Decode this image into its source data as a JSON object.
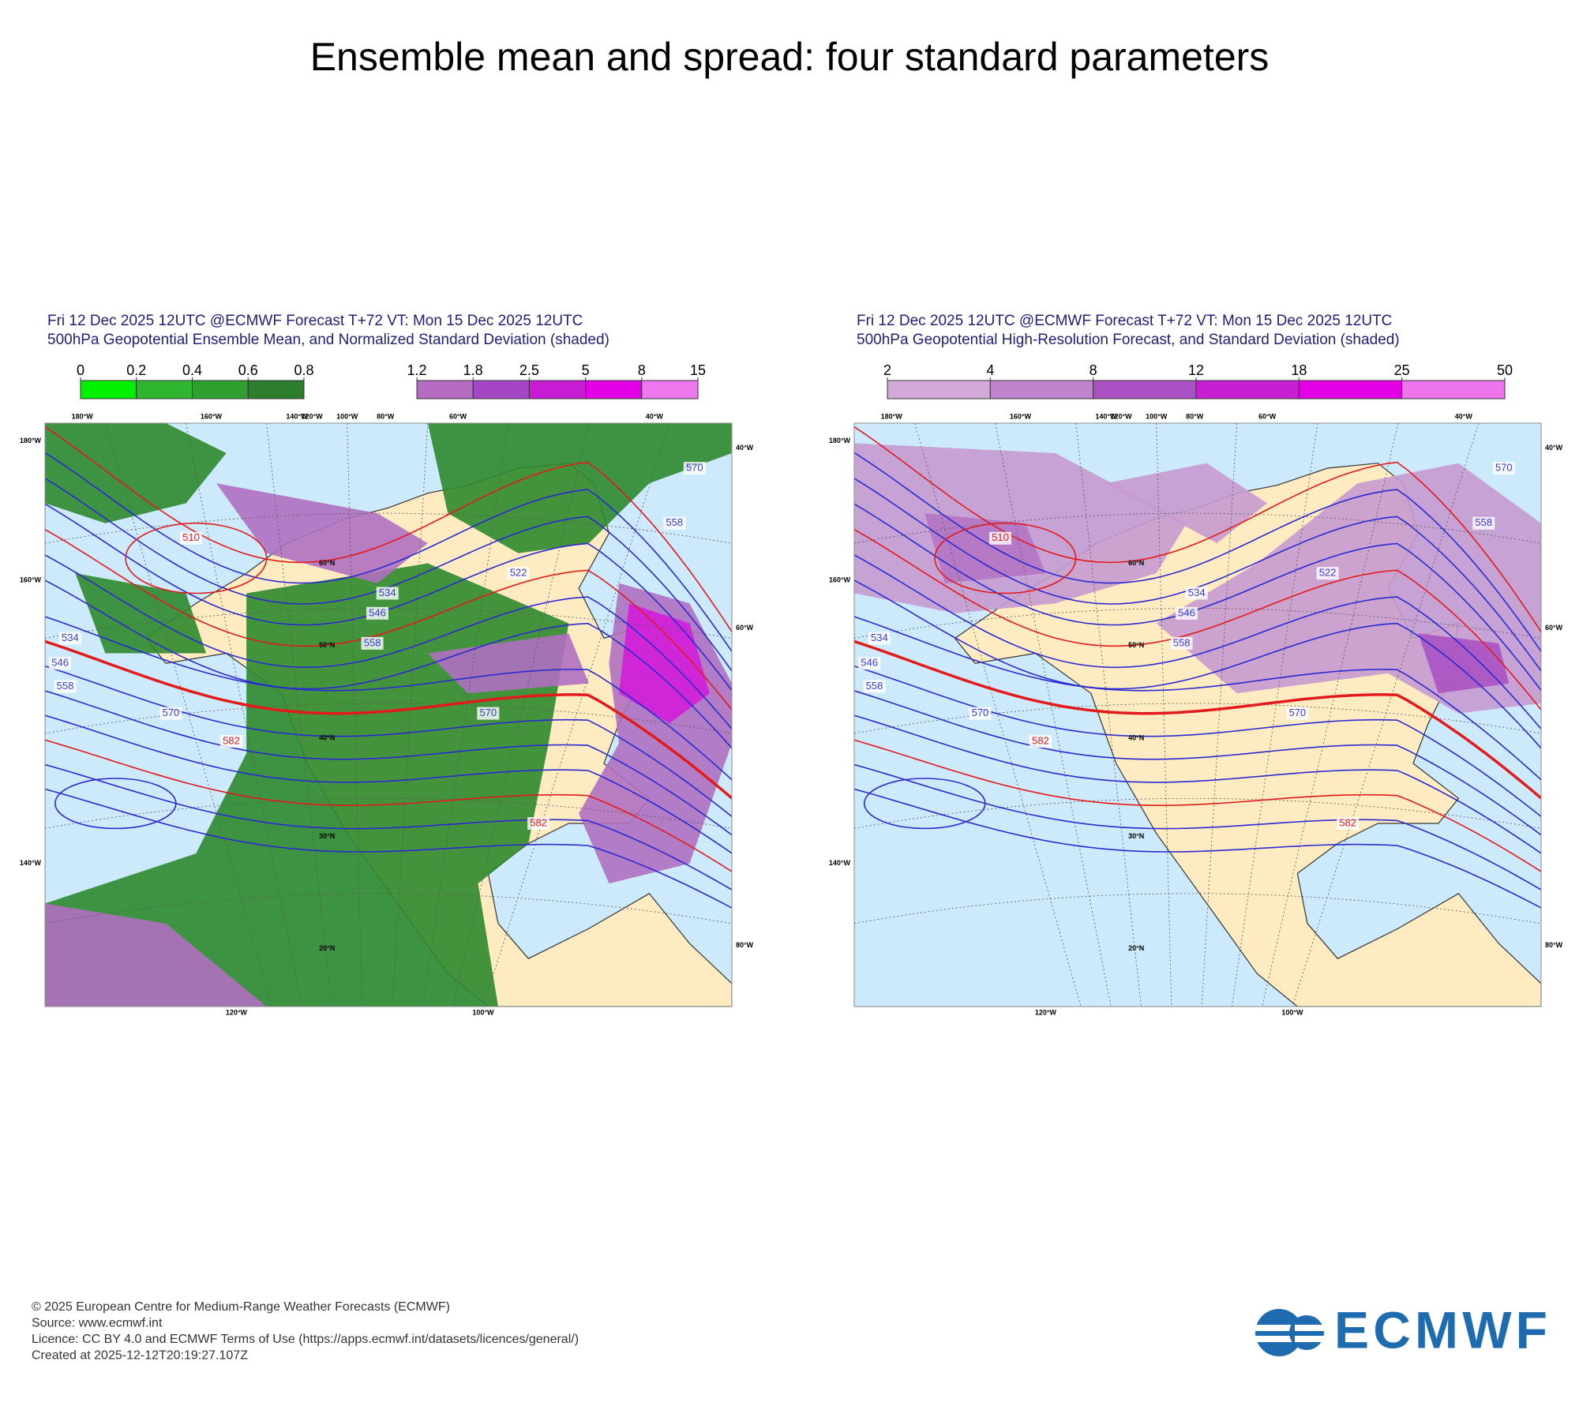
{
  "title": "Ensemble mean and spread: four standard parameters",
  "panels": [
    {
      "header": [
        "Fri 12 Dec 2025 12UTC @ECMWF Forecast T+72 VT: Mon 15 Dec 2025 12UTC",
        "500hPa Geopotential Ensemble Mean, and Normalized Standard Deviation (shaded)"
      ],
      "colorbars": [
        {
          "ticks": [
            0,
            0.2,
            0.4,
            0.6,
            0.8
          ],
          "colors": [
            "#00f000",
            "#2fb52f",
            "#2fa02f",
            "#2c7d2c"
          ]
        },
        {
          "ticks": [
            1.2,
            1.8,
            2.5,
            5,
            8,
            15
          ],
          "colors": [
            "#b56cc2",
            "#a547c4",
            "#c81cd4",
            "#e400e6",
            "#ee78ee"
          ]
        }
      ],
      "map": {
        "top": [
          "180°W",
          "160°W",
          "140°W",
          "120°W",
          "100°W",
          "80°W",
          "60°W",
          "40°W"
        ],
        "left": [
          "180°W",
          "160°W",
          "140°W"
        ],
        "right": [
          "40°W",
          "60°W",
          "80°W"
        ],
        "bottom": [
          "120°W",
          "100°W"
        ],
        "lat": [
          "60°N",
          "50°N",
          "40°N",
          "30°N",
          "20°N"
        ],
        "contours": [
          "510",
          "534",
          "546",
          "558",
          "570",
          "582",
          "522",
          "534",
          "546",
          "558",
          "570",
          "582",
          "558",
          "570"
        ]
      }
    },
    {
      "header": [
        "Fri 12 Dec 2025 12UTC @ECMWF Forecast T+72 VT: Mon 15 Dec 2025 12UTC",
        "500hPa Geopotential High-Resolution Forecast, and Standard Deviation (shaded)"
      ],
      "colorbars": [
        {
          "ticks": [
            2,
            4,
            8,
            12,
            18,
            25,
            50
          ],
          "colors": [
            "#d2a9d8",
            "#c183ce",
            "#aa52c3",
            "#c71fd3",
            "#e400e6",
            "#ee74ee"
          ]
        }
      ],
      "map": {
        "top": [
          "180°W",
          "160°W",
          "140°W",
          "120°W",
          "100°W",
          "80°W",
          "60°W",
          "40°W"
        ],
        "left": [
          "180°W",
          "160°W",
          "140°W"
        ],
        "right": [
          "40°W",
          "60°W",
          "80°W"
        ],
        "bottom": [
          "120°W",
          "100°W"
        ],
        "lat": [
          "60°N",
          "50°N",
          "40°N",
          "30°N",
          "20°N"
        ],
        "contours": [
          "510",
          "534",
          "546",
          "558",
          "570",
          "582",
          "522",
          "534",
          "546",
          "558",
          "570",
          "582",
          "558",
          "570"
        ]
      }
    }
  ],
  "footer": [
    "© 2025 European Centre for Medium-Range Weather Forecasts (ECMWF)",
    "Source: www.ecmwf.int",
    "Licence: CC BY 4.0 and ECMWF Terms of Use (https://apps.ecmwf.int/datasets/licences/general/)",
    "Created at 2025-12-12T20:19:27.107Z"
  ],
  "logo": "ECMWF"
}
